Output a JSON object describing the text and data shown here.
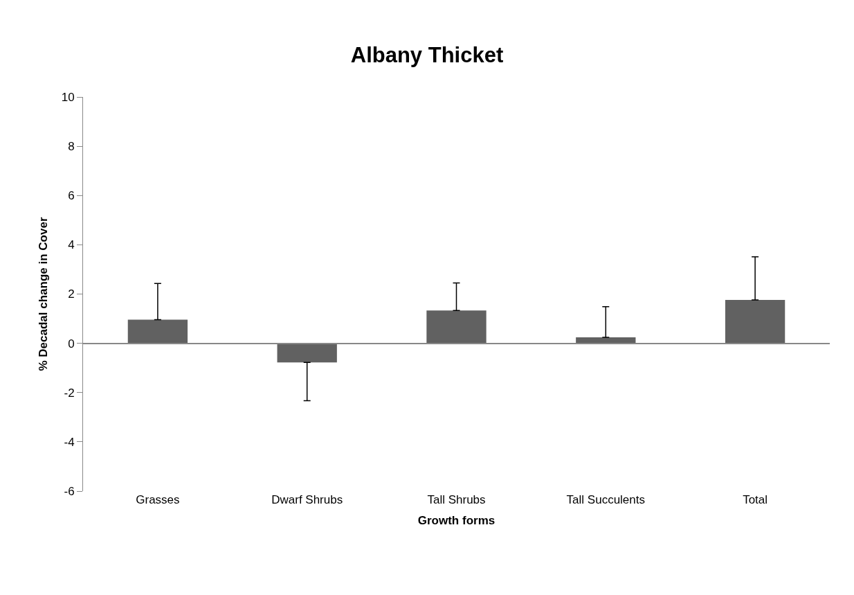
{
  "chart_data": {
    "type": "bar",
    "title": "Albany Thicket",
    "xlabel": "Growth forms",
    "ylabel": "% Decadal change in Cover",
    "categories": [
      "Grasses",
      "Dwarf Shrubs",
      "Tall Shrubs",
      "Tall Succulents",
      "Total"
    ],
    "values": [
      0.96,
      -0.78,
      1.33,
      0.24,
      1.76
    ],
    "errors": [
      [
        0.96,
        2.43
      ],
      [
        -2.33,
        -0.78
      ],
      [
        1.33,
        2.45
      ],
      [
        0.24,
        1.49
      ],
      [
        1.76,
        3.51
      ]
    ],
    "color": "#616161",
    "ylim": [
      -6,
      10
    ],
    "yticks": [
      -6,
      -4,
      -2,
      0,
      2,
      4,
      6,
      8,
      10
    ],
    "legend": false
  }
}
